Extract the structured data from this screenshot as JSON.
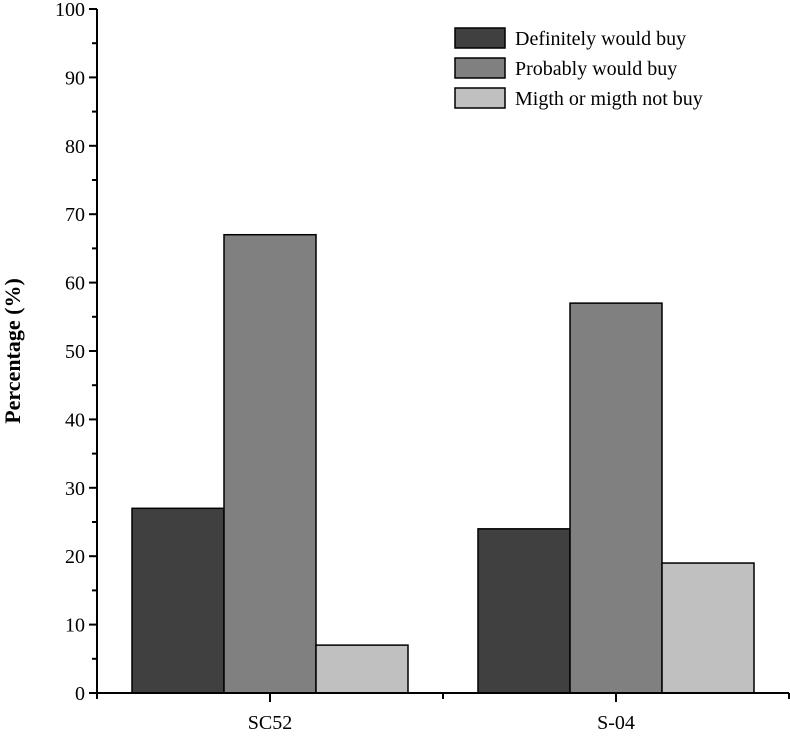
{
  "chart_data": {
    "type": "bar",
    "title": "",
    "xlabel": "",
    "ylabel": "Percentage (%)",
    "ylim": [
      0,
      100
    ],
    "yticks": [
      0,
      10,
      20,
      30,
      40,
      50,
      60,
      70,
      80,
      90,
      100
    ],
    "categories": [
      "SC52",
      "S-04"
    ],
    "series": [
      {
        "name": "Definitely would buy",
        "values": [
          27,
          24
        ],
        "color": "#404040"
      },
      {
        "name": "Probably would buy",
        "values": [
          67,
          57
        ],
        "color": "#808080"
      },
      {
        "name": "Migth or migth not buy",
        "values": [
          7,
          19
        ],
        "color": "#c0c0c0"
      }
    ],
    "legend_position": "top-right",
    "grid": false
  }
}
